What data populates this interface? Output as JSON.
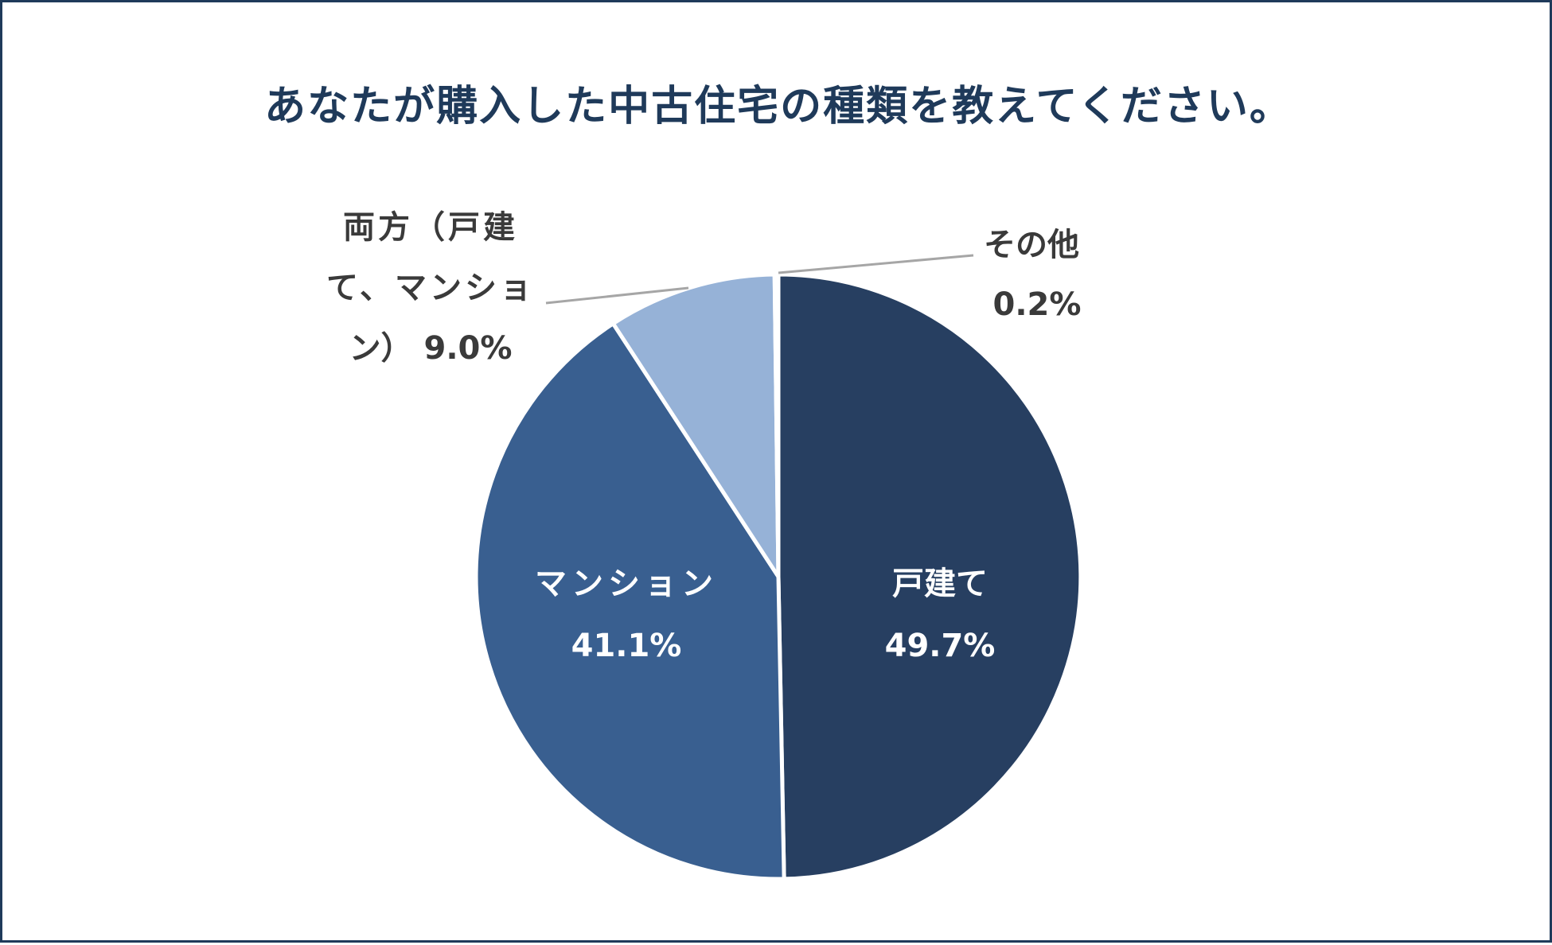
{
  "chart_data": {
    "type": "pie",
    "title": "あなたが購入した中古住宅の種類を教えてください。",
    "start_angle_deg": 0,
    "direction": "clockwise",
    "slices": [
      {
        "id": "kodate",
        "label": "戸建て",
        "value": 49.7,
        "value_label": "49.7%",
        "color": "#273f61"
      },
      {
        "id": "mansion",
        "label": "マンション",
        "value": 41.1,
        "value_label": "41.1%",
        "color": "#395f90"
      },
      {
        "id": "both",
        "label": "両方（戸建て、マンション）",
        "label_lines": [
          "両方（戸建",
          "て、マンショ",
          "ン） 9.0%"
        ],
        "value": 9.0,
        "value_label": "9.0%",
        "color": "#96b2d7"
      },
      {
        "id": "other",
        "label": "その他",
        "label_lines": [
          "その他",
          "0.2%"
        ],
        "value": 0.2,
        "value_label": "0.2%",
        "color": "#3e5f8f"
      }
    ],
    "legend": "none",
    "slice_border_color": "#ffffff"
  }
}
